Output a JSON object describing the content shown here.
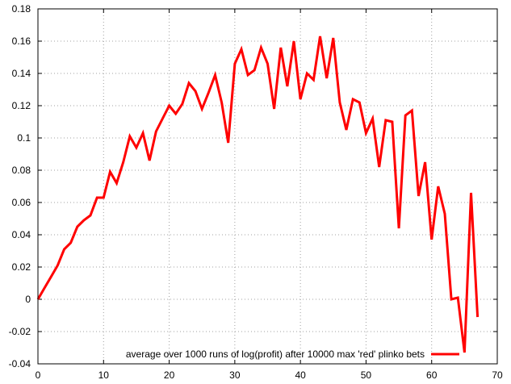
{
  "chart_data": {
    "type": "line",
    "title": "",
    "xlabel": "",
    "ylabel": "",
    "xlim": [
      0,
      70
    ],
    "ylim": [
      -0.04,
      0.18
    ],
    "grid": true,
    "legend_position": "bottom-right",
    "x_ticks": [
      0,
      10,
      20,
      30,
      40,
      50,
      60,
      70
    ],
    "y_ticks": [
      -0.04,
      -0.02,
      0,
      0.02,
      0.04,
      0.06,
      0.08,
      0.1,
      0.12,
      0.14,
      0.16,
      0.18
    ],
    "x_tick_labels": [
      "0",
      "10",
      "20",
      "30",
      "40",
      "50",
      "60",
      "70"
    ],
    "y_tick_labels": [
      "-0.04",
      "-0.02",
      "0",
      "0.02",
      "0.04",
      "0.06",
      "0.08",
      "0.1",
      "0.12",
      "0.14",
      "0.16",
      "0.18"
    ],
    "series": [
      {
        "name": "average over 1000 runs of log(profit) after 10000 max 'red' plinko bets",
        "color": "#ff0000",
        "x": [
          0,
          1,
          2,
          3,
          4,
          5,
          6,
          7,
          8,
          9,
          10,
          11,
          12,
          13,
          14,
          15,
          16,
          17,
          18,
          19,
          20,
          21,
          22,
          23,
          24,
          25,
          26,
          27,
          28,
          29,
          30,
          31,
          32,
          33,
          34,
          35,
          36,
          37,
          38,
          39,
          40,
          41,
          42,
          43,
          44,
          45,
          46,
          47,
          48,
          49,
          50,
          51,
          52,
          53,
          54,
          55,
          56,
          57,
          58,
          59,
          60,
          61,
          62,
          63,
          64,
          65,
          66,
          67
        ],
        "y": [
          0.0,
          0.007,
          0.014,
          0.021,
          0.031,
          0.035,
          0.045,
          0.049,
          0.052,
          0.063,
          0.063,
          0.079,
          0.072,
          0.085,
          0.101,
          0.094,
          0.103,
          0.086,
          0.104,
          0.112,
          0.12,
          0.115,
          0.121,
          0.134,
          0.129,
          0.118,
          0.128,
          0.139,
          0.122,
          0.097,
          0.146,
          0.155,
          0.139,
          0.142,
          0.156,
          0.146,
          0.118,
          0.156,
          0.132,
          0.16,
          0.124,
          0.14,
          0.136,
          0.163,
          0.137,
          0.162,
          0.122,
          0.105,
          0.124,
          0.122,
          0.103,
          0.112,
          0.082,
          0.111,
          0.11,
          0.044,
          0.114,
          0.117,
          0.064,
          0.085,
          0.037,
          0.07,
          0.053,
          0.0,
          0.001,
          -0.033,
          0.066,
          -0.011
        ]
      }
    ]
  }
}
